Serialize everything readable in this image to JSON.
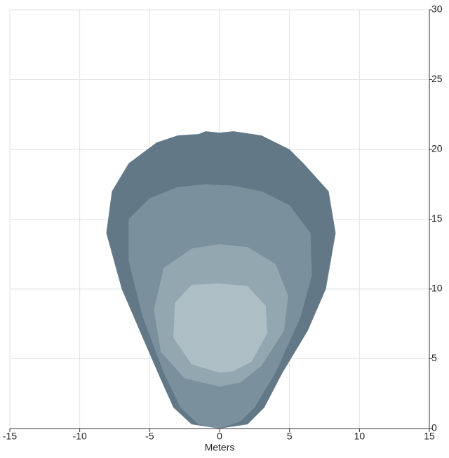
{
  "chart_data": {
    "type": "contour",
    "xlabel": "Meters",
    "xlim": [
      -15,
      15
    ],
    "xticks": [
      -15,
      -10,
      -5,
      0,
      5,
      10,
      15
    ],
    "ylim": [
      0,
      30
    ],
    "yticks": [
      0,
      5,
      10,
      15,
      20,
      25,
      30
    ],
    "grid": true,
    "series": [
      {
        "color": "#627886",
        "x": [
          0,
          -2,
          -3.3,
          -4.2,
          -5.5,
          -7,
          -8.1,
          -7.7,
          -6.5,
          -4.5,
          -3,
          -1.5,
          -1,
          0,
          1,
          3,
          5,
          6,
          7.8,
          8.3,
          7.6,
          6.3,
          4.5,
          3.2,
          2
        ],
        "y": [
          0,
          0.3,
          1.5,
          3.5,
          6.5,
          10,
          14,
          17,
          19,
          20.5,
          21,
          21.1,
          21.3,
          21.2,
          21.3,
          21,
          20,
          19,
          17,
          14,
          10,
          7,
          4,
          1.5,
          0.3
        ]
      },
      {
        "color": "#7a909c",
        "x": [
          0,
          -1.5,
          -2.8,
          -4,
          -5.5,
          -6.5,
          -6.5,
          -5,
          -3,
          -1,
          1,
          3,
          5,
          6.5,
          6.6,
          5.8,
          4,
          2.5,
          1.5
        ],
        "y": [
          0,
          0.3,
          1.5,
          4,
          8,
          12,
          15,
          16.5,
          17.3,
          17.5,
          17.4,
          17,
          16,
          14,
          11,
          8,
          4,
          1.5,
          0.5
        ]
      },
      {
        "color": "#93a7b0",
        "x": [
          0,
          -2.5,
          -4.2,
          -4.7,
          -4,
          -2,
          0,
          2,
          4,
          4.9,
          4.6,
          3,
          1.5
        ],
        "y": [
          3,
          3.6,
          5.5,
          8.5,
          11.5,
          12.9,
          13.2,
          13,
          11.8,
          9.5,
          7,
          4.5,
          3.3
        ]
      },
      {
        "color": "#adbec4",
        "x": [
          0,
          -2,
          -3.3,
          -3.2,
          -2,
          0,
          2,
          3.3,
          3.4,
          2.3,
          1
        ],
        "y": [
          4,
          4.6,
          6.5,
          9,
          10.3,
          10.4,
          10.2,
          8.8,
          6.8,
          4.8,
          4.1
        ]
      }
    ]
  }
}
